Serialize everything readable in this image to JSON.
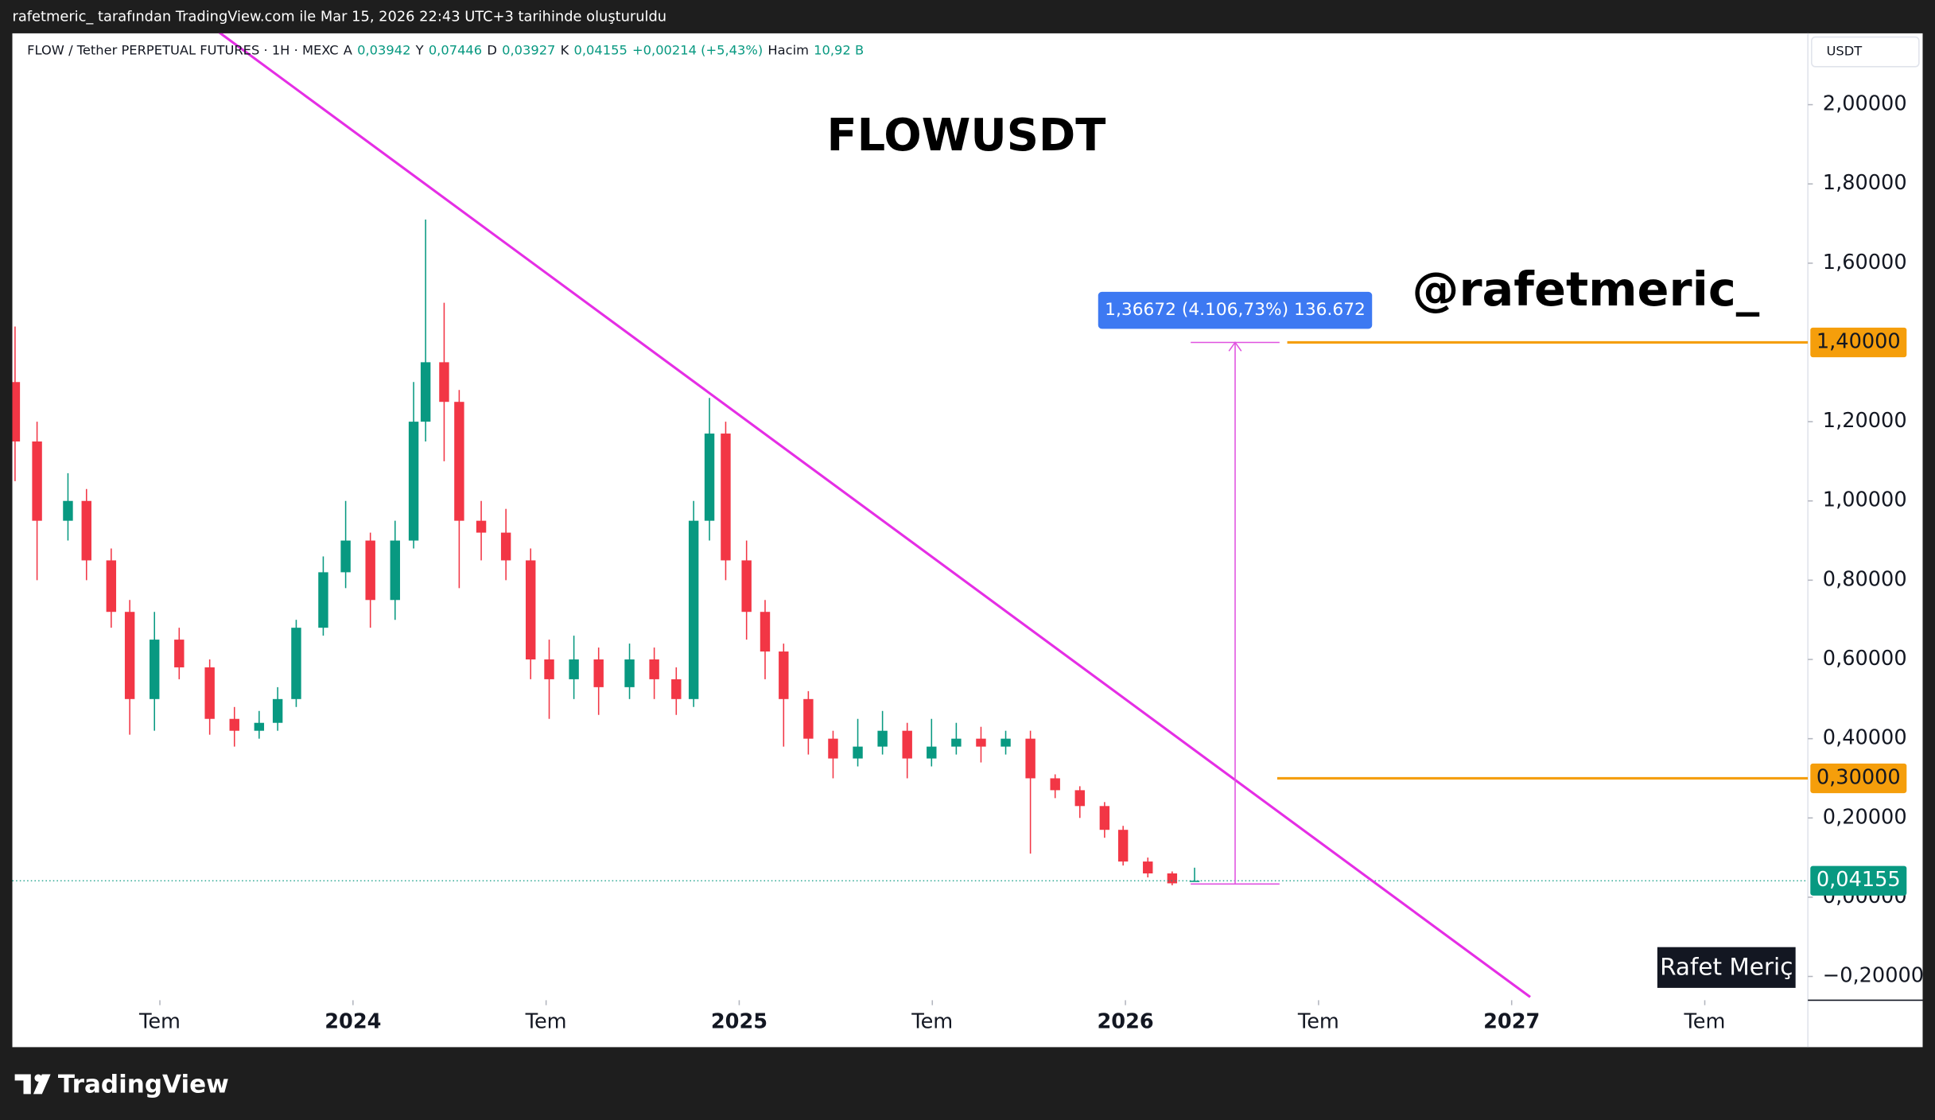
{
  "header": {
    "text": "rafetmeric_ tarafından TradingView.com ile Mar 15, 2026 22:43 UTC+3 tarihinde oluşturuldu"
  },
  "legend": {
    "symbol": "FLOW / Tether PERPETUAL FUTURES · 1H · MEXC",
    "fields": [
      {
        "key": "A",
        "text": "0,03942"
      },
      {
        "key": "Y",
        "text": "0,07446"
      },
      {
        "key": "D",
        "text": "0,03927"
      },
      {
        "key": "K",
        "text": "0,04155"
      },
      {
        "key": "",
        "text": "+0,00214 (+5,43%)"
      },
      {
        "key": "Hacim",
        "text": "10,92 B"
      }
    ]
  },
  "footer": {
    "logo": "TradingView"
  },
  "chart_data": {
    "type": "candlestick",
    "title": "FLOWUSDT",
    "watermark": "@rafetmeric_",
    "author_tag": "Rafet Meriç",
    "currency": "USDT",
    "up_color": "#089981",
    "down_color": "#f23645",
    "x": [
      2023.125,
      2023.182,
      2023.262,
      2023.31,
      2023.374,
      2023.422,
      2023.486,
      2023.55,
      2023.629,
      2023.693,
      2023.757,
      2023.805,
      2023.853,
      2023.923,
      2023.981,
      2024.045,
      2024.109,
      2024.157,
      2024.188,
      2024.236,
      2024.275,
      2024.332,
      2024.396,
      2024.46,
      2024.508,
      2024.572,
      2024.636,
      2024.716,
      2024.78,
      2024.837,
      2024.882,
      2024.923,
      2024.965,
      2025.019,
      2025.067,
      2025.115,
      2025.179,
      2025.243,
      2025.307,
      2025.371,
      2025.435,
      2025.498,
      2025.562,
      2025.626,
      2025.69,
      2025.754,
      2025.818,
      2025.882,
      2025.946,
      2025.994,
      2026.058,
      2026.121,
      2026.179
    ],
    "open": [
      1.3,
      1.15,
      0.95,
      1.0,
      0.85,
      0.72,
      0.5,
      0.65,
      0.58,
      0.45,
      0.42,
      0.44,
      0.5,
      0.68,
      0.82,
      0.9,
      0.75,
      0.9,
      1.2,
      1.35,
      1.25,
      0.95,
      0.92,
      0.85,
      0.6,
      0.55,
      0.6,
      0.53,
      0.6,
      0.55,
      0.5,
      0.95,
      1.17,
      0.85,
      0.72,
      0.62,
      0.5,
      0.4,
      0.35,
      0.38,
      0.42,
      0.35,
      0.38,
      0.4,
      0.38,
      0.4,
      0.3,
      0.27,
      0.23,
      0.17,
      0.09,
      0.06,
      0.03942
    ],
    "high": [
      1.44,
      1.2,
      1.07,
      1.03,
      0.88,
      0.75,
      0.72,
      0.68,
      0.6,
      0.48,
      0.47,
      0.53,
      0.7,
      0.86,
      1.0,
      0.92,
      0.95,
      1.3,
      1.71,
      1.5,
      1.28,
      1.0,
      0.98,
      0.88,
      0.65,
      0.66,
      0.63,
      0.64,
      0.63,
      0.58,
      1.0,
      1.26,
      1.2,
      0.9,
      0.75,
      0.64,
      0.52,
      0.42,
      0.45,
      0.47,
      0.44,
      0.45,
      0.44,
      0.43,
      0.42,
      0.42,
      0.31,
      0.28,
      0.24,
      0.18,
      0.1,
      0.065,
      0.07446
    ],
    "low": [
      1.05,
      0.8,
      0.9,
      0.8,
      0.68,
      0.41,
      0.42,
      0.55,
      0.41,
      0.38,
      0.4,
      0.42,
      0.48,
      0.66,
      0.78,
      0.68,
      0.7,
      0.88,
      1.15,
      1.1,
      0.78,
      0.85,
      0.8,
      0.55,
      0.45,
      0.5,
      0.46,
      0.5,
      0.5,
      0.46,
      0.48,
      0.9,
      0.8,
      0.65,
      0.55,
      0.38,
      0.36,
      0.3,
      0.33,
      0.36,
      0.3,
      0.33,
      0.36,
      0.34,
      0.36,
      0.11,
      0.25,
      0.2,
      0.15,
      0.08,
      0.05,
      0.03,
      0.03927
    ],
    "close": [
      1.15,
      0.95,
      1.0,
      0.85,
      0.72,
      0.5,
      0.65,
      0.58,
      0.45,
      0.42,
      0.44,
      0.5,
      0.68,
      0.82,
      0.9,
      0.75,
      0.9,
      1.2,
      1.35,
      1.25,
      0.95,
      0.92,
      0.85,
      0.6,
      0.55,
      0.6,
      0.53,
      0.6,
      0.55,
      0.5,
      0.95,
      1.17,
      0.85,
      0.72,
      0.62,
      0.5,
      0.4,
      0.35,
      0.38,
      0.42,
      0.35,
      0.38,
      0.4,
      0.38,
      0.4,
      0.3,
      0.27,
      0.23,
      0.17,
      0.09,
      0.06,
      0.035,
      0.04155
    ],
    "xlim": [
      2023.118,
      2027.767
    ],
    "xticks": [
      {
        "value": 2023.5,
        "label": "Tem"
      },
      2024,
      {
        "value": 2024.5,
        "label": "Tem"
      },
      2025,
      {
        "value": 2025.5,
        "label": "Tem"
      },
      2026,
      {
        "value": 2026.5,
        "label": "Tem"
      },
      2027,
      {
        "value": 2027.5,
        "label": "Tem"
      }
    ],
    "ylim": [
      -0.26,
      2.18
    ],
    "yticks": [
      {
        "value": 2.0,
        "label": "2,00000"
      },
      {
        "value": 1.8,
        "label": "1,80000"
      },
      {
        "value": 1.6,
        "label": "1,60000"
      },
      {
        "value": 1.2,
        "label": "1,20000"
      },
      {
        "value": 1.0,
        "label": "1,00000"
      },
      {
        "value": 0.8,
        "label": "0,80000"
      },
      {
        "value": 0.6,
        "label": "0,60000"
      },
      {
        "value": 0.4,
        "label": "0,40000"
      },
      {
        "value": 0.2,
        "label": "0,20000"
      },
      {
        "value": 0,
        "label": "0,00000"
      },
      {
        "value": -0.2,
        "label": "−0,20000"
      }
    ],
    "last_price": {
      "value": 0.04155,
      "value_label": "0,04155",
      "color": "#089981"
    },
    "hlines": [
      {
        "value": 1.4,
        "value_label": "1,40000",
        "from": 2026.419,
        "color": "#f59e0b"
      },
      {
        "value": 0.3,
        "value_label": "0,30000",
        "from": 2026.393,
        "color": "#f59e0b"
      }
    ],
    "trendline": {
      "x": [
        2023.629,
        2027.048
      ],
      "y": [
        2.2,
        -0.252
      ],
      "color": "#e52ee5"
    },
    "measure": {
      "x": 2026.284,
      "x_from": 2026.169,
      "x_to": 2026.399,
      "from": 0.03328,
      "to": 1.4,
      "label": "1,36672 (4.106,73%) 136.672",
      "color": "#3d79f2"
    }
  }
}
